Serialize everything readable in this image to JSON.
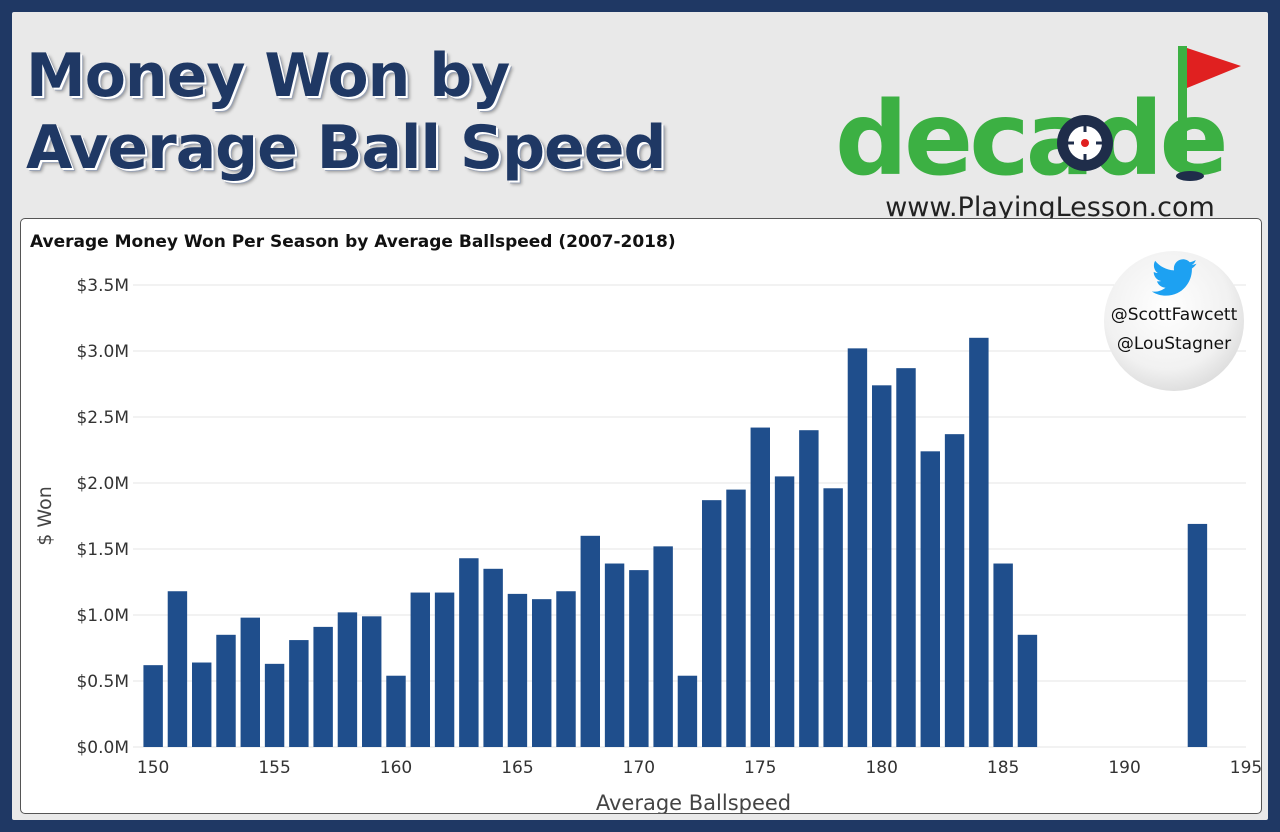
{
  "headline": {
    "line1": "Money Won by",
    "line2": "Average Ball Speed"
  },
  "logo": {
    "text": "decade",
    "url": "www.PlayingLesson.com",
    "flag_color": "#e02020",
    "green": "#3cb043",
    "navy": "#1f2d4a"
  },
  "twitter": {
    "icon": "twitter-bird-icon",
    "handle1": "@ScottFawcett",
    "handle2": "@LouStagner",
    "color": "#1da1f2"
  },
  "colors": {
    "bar": "#1f4e8c",
    "frame": "#1f3864",
    "headline": "#1f3864"
  },
  "chart_data": {
    "type": "bar",
    "title": "Average Money Won Per Season by Average Ballspeed (2007-2018)",
    "xlabel": "Average Ballspeed",
    "ylabel": "$ Won",
    "xlim": [
      149.5,
      195
    ],
    "ylim": [
      0,
      3.5
    ],
    "x_ticks": [
      150,
      155,
      160,
      165,
      170,
      175,
      180,
      185,
      190,
      195
    ],
    "y_ticks": [
      0,
      0.5,
      1.0,
      1.5,
      2.0,
      2.5,
      3.0,
      3.5
    ],
    "y_tick_labels": [
      "$0.0M",
      "$0.5M",
      "$1.0M",
      "$1.5M",
      "$2.0M",
      "$2.5M",
      "$3.0M",
      "$3.5M"
    ],
    "grid": true,
    "unit": "$M",
    "x": [
      150,
      151,
      152,
      153,
      154,
      155,
      156,
      157,
      158,
      159,
      160,
      161,
      162,
      163,
      164,
      165,
      166,
      167,
      168,
      169,
      170,
      171,
      172,
      173,
      174,
      175,
      176,
      177,
      178,
      179,
      180,
      181,
      182,
      183,
      184,
      185,
      186,
      193
    ],
    "values": [
      0.62,
      1.18,
      0.64,
      0.85,
      0.98,
      0.63,
      0.81,
      0.91,
      1.02,
      0.99,
      0.54,
      1.17,
      1.17,
      1.43,
      1.35,
      1.16,
      1.12,
      1.18,
      1.6,
      1.39,
      1.34,
      1.52,
      0.54,
      1.87,
      1.95,
      2.42,
      2.05,
      2.4,
      1.96,
      3.02,
      2.74,
      2.87,
      2.24,
      2.37,
      3.1,
      1.39,
      0.85,
      1.69
    ]
  }
}
